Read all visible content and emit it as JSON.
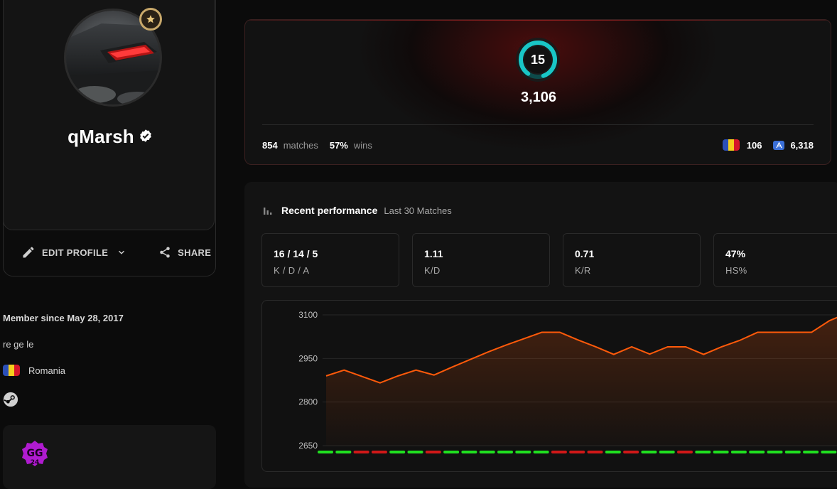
{
  "profile": {
    "username": "qMarsh",
    "member_since": "Member since May 28, 2017",
    "bio": "re ge le",
    "country": "Romania",
    "actions": {
      "edit": "EDIT PROFILE",
      "share": "SHARE"
    },
    "icons": [
      "star-badge-icon",
      "verified-icon",
      "pencil-icon",
      "chevron-down-icon",
      "share-icon",
      "steam-icon",
      "gg24-logo"
    ]
  },
  "elo": {
    "level": "15",
    "value": "3,106",
    "matches": "854",
    "matches_label": "matches",
    "wins": "57%",
    "wins_label": "wins",
    "country_rank": "106",
    "region_rank": "6,318",
    "colors": {
      "ring": "#19c6c6",
      "card_glow": "#a01010"
    }
  },
  "performance": {
    "title": "Recent performance",
    "subtitle": "Last 30 Matches",
    "stats": [
      {
        "value": "16 / 14 / 5",
        "label": "K / D / A"
      },
      {
        "value": "1.11",
        "label": "K/D"
      },
      {
        "value": "0.71",
        "label": "K/R"
      },
      {
        "value": "47%",
        "label": "HS%"
      }
    ]
  },
  "chart_data": {
    "type": "area",
    "title": "",
    "xlabel": "",
    "ylabel": "",
    "ylim": [
      2650,
      3100
    ],
    "y_ticks": [
      "3100",
      "2950",
      "2800",
      "2650"
    ],
    "grid": true,
    "series": [
      {
        "values": [
          2890,
          2910,
          2888,
          2866,
          2890,
          2910,
          2893,
          2920,
          2946,
          2972,
          2996,
          3018,
          3040,
          3040,
          3014,
          2990,
          2964,
          2990,
          2965,
          2990,
          2990,
          2964,
          2990,
          3012,
          3040,
          3040,
          3040,
          3040,
          3080,
          3106,
          3106
        ],
        "color": "#ff5a0a"
      }
    ],
    "results": [
      "W",
      "W",
      "L",
      "L",
      "W",
      "W",
      "L",
      "W",
      "W",
      "W",
      "W",
      "W",
      "W",
      "L",
      "L",
      "L",
      "W",
      "L",
      "W",
      "W",
      "L",
      "W",
      "W",
      "W",
      "W",
      "W",
      "W",
      "W",
      "W",
      "W",
      "W"
    ],
    "result_colors": {
      "W": "#20e020",
      "L": "#d01818"
    }
  }
}
